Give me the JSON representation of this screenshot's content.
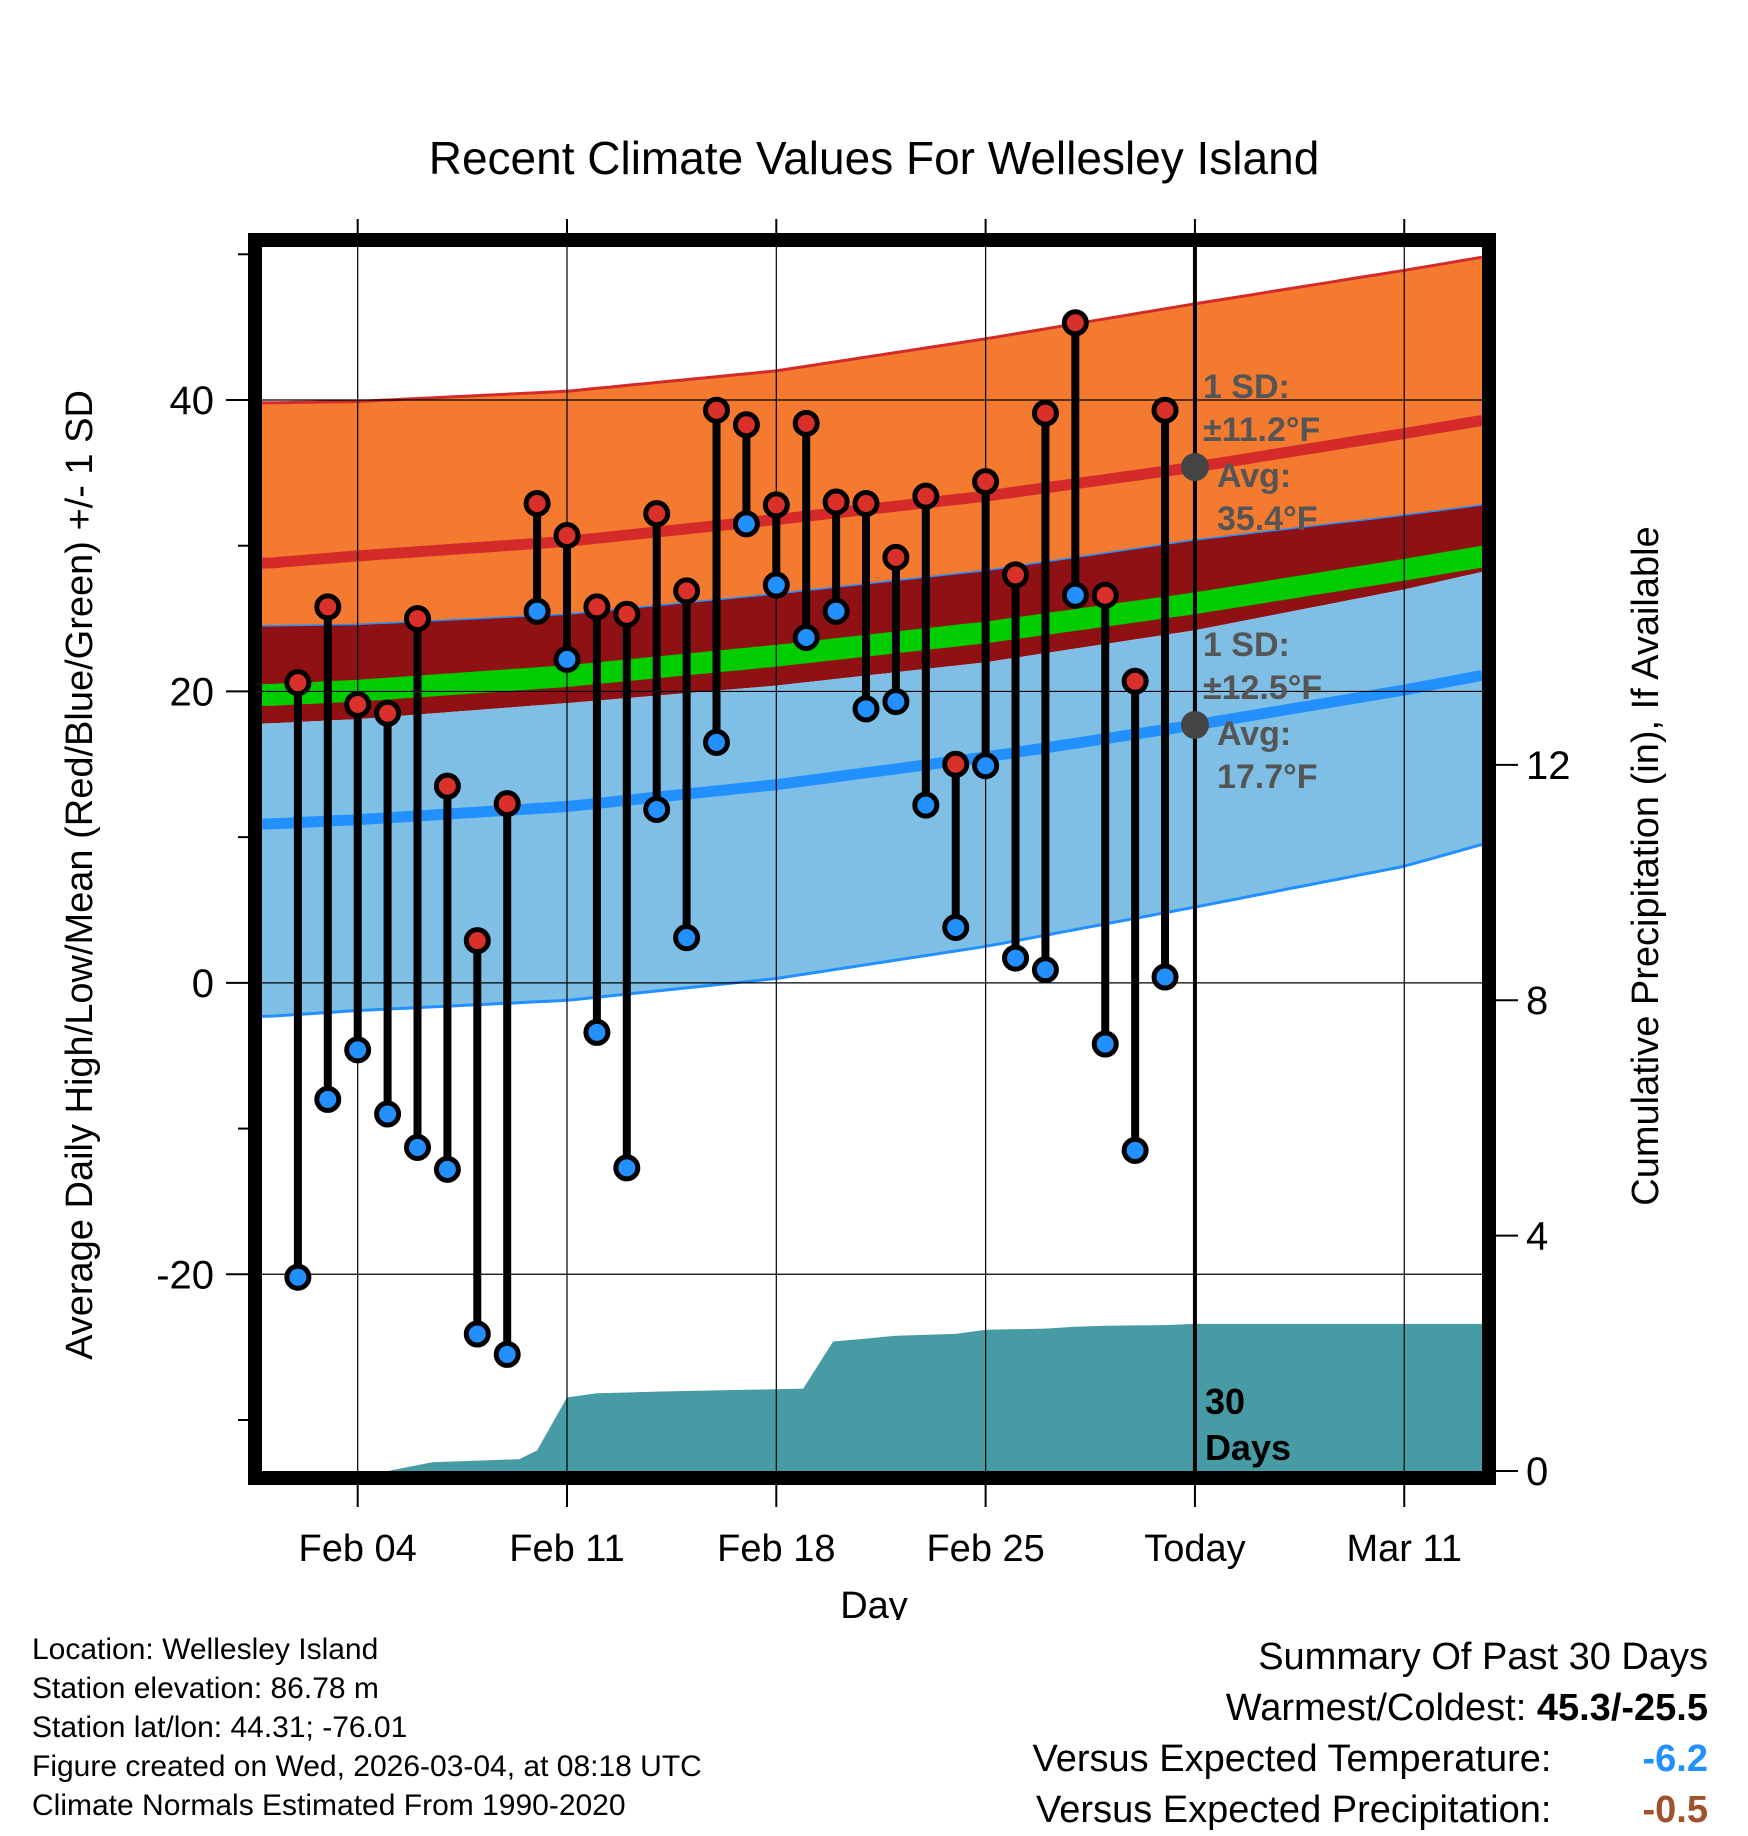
{
  "chart_data": {
    "type": "line",
    "title": "Recent Climate Values For Wellesley Island",
    "xlabel": "Day",
    "ylabel": "Average Daily High/Low/Mean (Red/Blue/Green) +/- 1 SD",
    "y2label": "Cumulative Precipitation (in), If Available",
    "x_day_range": [
      -31.2,
      9.6
    ],
    "ylim": [
      -33.5,
      50.5
    ],
    "y2lim": [
      0,
      20.8
    ],
    "y_ticks": [
      -20,
      0,
      20,
      40
    ],
    "y_tick_labels": [
      "-20",
      "0",
      "20",
      "40"
    ],
    "y2_ticks": [
      0,
      4,
      8,
      12
    ],
    "y2_tick_labels": [
      "0",
      "4",
      "8",
      "12"
    ],
    "x_ticks": [
      -28,
      -21,
      -14,
      -7,
      0,
      7
    ],
    "x_tick_labels": [
      "Feb 04",
      "Feb 11",
      "Feb 18",
      "Feb 25",
      "Today",
      "Mar 11"
    ],
    "grid": true,
    "normals_days": [
      -31,
      -28,
      -21,
      -14,
      -7,
      0,
      7,
      9.6
    ],
    "normal_high": [
      28.8,
      29.3,
      30.3,
      31.8,
      33.4,
      35.4,
      37.7,
      38.6
    ],
    "normal_high_plus_sd": [
      39.8,
      39.9,
      40.6,
      42.0,
      44.2,
      46.6,
      48.9,
      49.8
    ],
    "normal_high_minus_sd": [
      24.5,
      24.6,
      25.3,
      26.7,
      28.3,
      30.4,
      32.1,
      32.8
    ],
    "normal_mean_top": [
      20.5,
      20.8,
      21.8,
      23.2,
      24.8,
      26.8,
      29.1,
      30.0
    ],
    "normal_mean_bottom": [
      19.0,
      19.3,
      20.3,
      21.7,
      23.3,
      25.3,
      27.6,
      28.5
    ],
    "normal_low_plus_sd": [
      17.8,
      18.1,
      19.2,
      20.4,
      22.0,
      24.2,
      27.0,
      28.2
    ],
    "normal_low": [
      10.9,
      11.2,
      12.1,
      13.6,
      15.5,
      17.7,
      20.1,
      21.1
    ],
    "normal_low_minus_sd": [
      -2.3,
      -1.9,
      -1.2,
      0.3,
      2.5,
      5.2,
      8.0,
      9.5
    ],
    "observed": {
      "days": [
        -30,
        -29,
        -28,
        -27,
        -26,
        -25,
        -24,
        -23,
        -22,
        -21,
        -20,
        -19,
        -18,
        -17,
        -16,
        -15,
        -14,
        -13,
        -12,
        -11,
        -10,
        -9,
        -8,
        -7,
        -6,
        -5,
        -4,
        -3,
        -2,
        -1
      ],
      "high": [
        20.6,
        25.8,
        19.1,
        18.5,
        25.0,
        13.5,
        2.9,
        12.3,
        32.9,
        30.7,
        25.8,
        25.3,
        32.2,
        26.9,
        39.3,
        38.3,
        32.8,
        38.4,
        33.0,
        32.9,
        29.2,
        33.4,
        15.0,
        34.4,
        28.0,
        39.1,
        45.3,
        26.6,
        20.7,
        39.3
      ],
      "low": [
        -20.2,
        -8.0,
        -4.6,
        -9.0,
        -11.3,
        -12.8,
        -24.1,
        -25.5,
        25.5,
        22.2,
        -3.4,
        -12.7,
        11.9,
        3.1,
        16.5,
        31.5,
        27.3,
        23.7,
        25.5,
        18.8,
        19.3,
        12.2,
        3.8,
        14.9,
        1.7,
        0.9,
        26.6,
        -4.2,
        -11.5,
        0.4
      ]
    },
    "precipitation": {
      "days": [
        -31.2,
        -27,
        -25.5,
        -22.6,
        -22,
        -21,
        -20,
        -18,
        -16,
        -15,
        -13.1,
        -12.1,
        -11,
        -10,
        -8,
        -7,
        -5,
        -4,
        -3,
        -1,
        0,
        9.6
      ],
      "cumulative": [
        0,
        0,
        0.15,
        0.2,
        0.35,
        1.25,
        1.32,
        1.35,
        1.37,
        1.38,
        1.4,
        2.2,
        2.25,
        2.3,
        2.33,
        2.4,
        2.42,
        2.45,
        2.47,
        2.48,
        2.5,
        2.5
      ]
    },
    "annotations": {
      "high_sd": "1 SD:",
      "high_sd_value": "±11.2°F",
      "high_avg": "Avg:",
      "high_avg_value": "35.4°F",
      "low_sd": "1 SD:",
      "low_sd_value": "±12.5°F",
      "low_avg": "Avg:",
      "low_avg_value": "17.7°F",
      "today_high_avg": 35.4,
      "today_low_avg": 17.7,
      "window_label_1": "30",
      "window_label_2": "Days"
    },
    "colors": {
      "high_band": "#f47a2f",
      "high_line": "#d42a2a",
      "mean_outer": "#8f1114",
      "mean_band": "#00cc00",
      "low_band": "#7fbfe6",
      "low_line": "#2290ff",
      "precip": "#479ba4",
      "obs_high_dot": "#d9302a",
      "obs_low_dot": "#2290ff",
      "today_dot": "#444444",
      "annotation_text": "#555555"
    }
  },
  "footer": {
    "location": "Location: Wellesley Island",
    "elevation": "Station elevation: 86.78 m",
    "latlon": "Station lat/lon: 44.31; -76.01",
    "created": "Figure created on Wed, 2026-03-04, at 08:18 UTC",
    "normals": "Climate Normals Estimated From 1990-2020"
  },
  "summary": {
    "title": "Summary Of Past 30 Days",
    "warm_cold_label": "Warmest/Coldest:",
    "warm_cold_value": "45.3/-25.5",
    "temp_label": "Versus Expected Temperature:",
    "temp_value": "-6.2",
    "temp_color": "#2290ff",
    "precip_label": "Versus Expected Precipitation:",
    "precip_value": "-0.5",
    "precip_color": "#a0522d"
  }
}
